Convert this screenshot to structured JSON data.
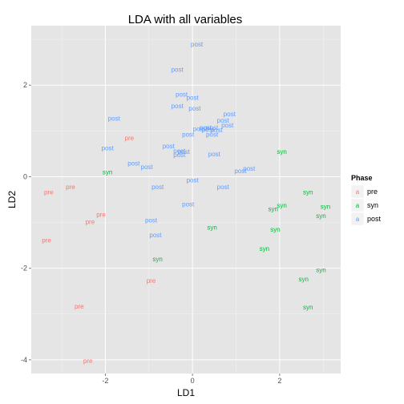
{
  "chart_data": {
    "type": "scatter",
    "title": "LDA with all variables",
    "xlabel": "LD1",
    "ylabel": "LD2",
    "xlim": [
      -3.7,
      3.4
    ],
    "ylim": [
      -4.3,
      3.3
    ],
    "xticks": [
      -2,
      0,
      2
    ],
    "yticks": [
      -4,
      -2,
      0,
      2
    ],
    "x_tick_labels": [
      "-2",
      "0",
      "2"
    ],
    "y_tick_labels": [
      "-4",
      "-2",
      "0",
      "2"
    ],
    "grid": true,
    "background": "#e5e5e5",
    "legend": {
      "title": "Phase",
      "position": "right",
      "key_glyph": "a",
      "entries": [
        {
          "name": "pre",
          "color": "#f8766d"
        },
        {
          "name": "syn",
          "color": "#00ba38"
        },
        {
          "name": "post",
          "color": "#619cff"
        }
      ]
    },
    "series": [
      {
        "name": "pre",
        "color": "#f8766d",
        "points": [
          {
            "x": -1.45,
            "y": 0.85
          },
          {
            "x": -2.8,
            "y": -0.22
          },
          {
            "x": -3.3,
            "y": -0.33
          },
          {
            "x": -2.1,
            "y": -0.82
          },
          {
            "x": -2.35,
            "y": -0.98
          },
          {
            "x": -3.35,
            "y": -1.38
          },
          {
            "x": -0.95,
            "y": -2.27
          },
          {
            "x": -2.6,
            "y": -2.83
          },
          {
            "x": -2.4,
            "y": -4.02
          }
        ]
      },
      {
        "name": "syn",
        "color": "#00ba38",
        "points": [
          {
            "x": -1.95,
            "y": 0.1
          },
          {
            "x": 2.05,
            "y": 0.55
          },
          {
            "x": 2.65,
            "y": -0.33
          },
          {
            "x": 2.05,
            "y": -0.62
          },
          {
            "x": 1.85,
            "y": -0.7
          },
          {
            "x": 3.05,
            "y": -0.65
          },
          {
            "x": 2.95,
            "y": -0.85
          },
          {
            "x": 0.45,
            "y": -1.1
          },
          {
            "x": 1.9,
            "y": -1.15
          },
          {
            "x": 1.65,
            "y": -1.57
          },
          {
            "x": -0.8,
            "y": -1.8
          },
          {
            "x": 2.95,
            "y": -2.03
          },
          {
            "x": 2.55,
            "y": -2.23
          },
          {
            "x": 2.65,
            "y": -2.85
          }
        ]
      },
      {
        "name": "post",
        "color": "#619cff",
        "points": [
          {
            "x": 0.1,
            "y": 2.9
          },
          {
            "x": -0.35,
            "y": 2.35
          },
          {
            "x": -0.25,
            "y": 1.8
          },
          {
            "x": 0.0,
            "y": 1.73
          },
          {
            "x": -0.35,
            "y": 1.55
          },
          {
            "x": 0.05,
            "y": 1.5
          },
          {
            "x": 0.85,
            "y": 1.37
          },
          {
            "x": -1.8,
            "y": 1.28
          },
          {
            "x": 0.7,
            "y": 1.23
          },
          {
            "x": 0.8,
            "y": 1.13
          },
          {
            "x": 0.3,
            "y": 1.08
          },
          {
            "x": 0.45,
            "y": 1.08
          },
          {
            "x": 0.15,
            "y": 1.05
          },
          {
            "x": 0.35,
            "y": 1.03
          },
          {
            "x": 0.55,
            "y": 1.02
          },
          {
            "x": -0.1,
            "y": 0.93
          },
          {
            "x": 0.45,
            "y": 0.93
          },
          {
            "x": -0.55,
            "y": 0.67
          },
          {
            "x": -1.95,
            "y": 0.63
          },
          {
            "x": -0.3,
            "y": 0.57
          },
          {
            "x": -0.2,
            "y": 0.55
          },
          {
            "x": 0.5,
            "y": 0.5
          },
          {
            "x": -0.3,
            "y": 0.48
          },
          {
            "x": -1.35,
            "y": 0.3
          },
          {
            "x": -1.05,
            "y": 0.22
          },
          {
            "x": 1.3,
            "y": 0.18
          },
          {
            "x": 1.1,
            "y": 0.13
          },
          {
            "x": 0.0,
            "y": -0.07
          },
          {
            "x": -0.8,
            "y": -0.22
          },
          {
            "x": 0.7,
            "y": -0.22
          },
          {
            "x": -0.1,
            "y": -0.6
          },
          {
            "x": -0.95,
            "y": -0.95
          },
          {
            "x": -0.85,
            "y": -1.27
          }
        ]
      }
    ]
  }
}
